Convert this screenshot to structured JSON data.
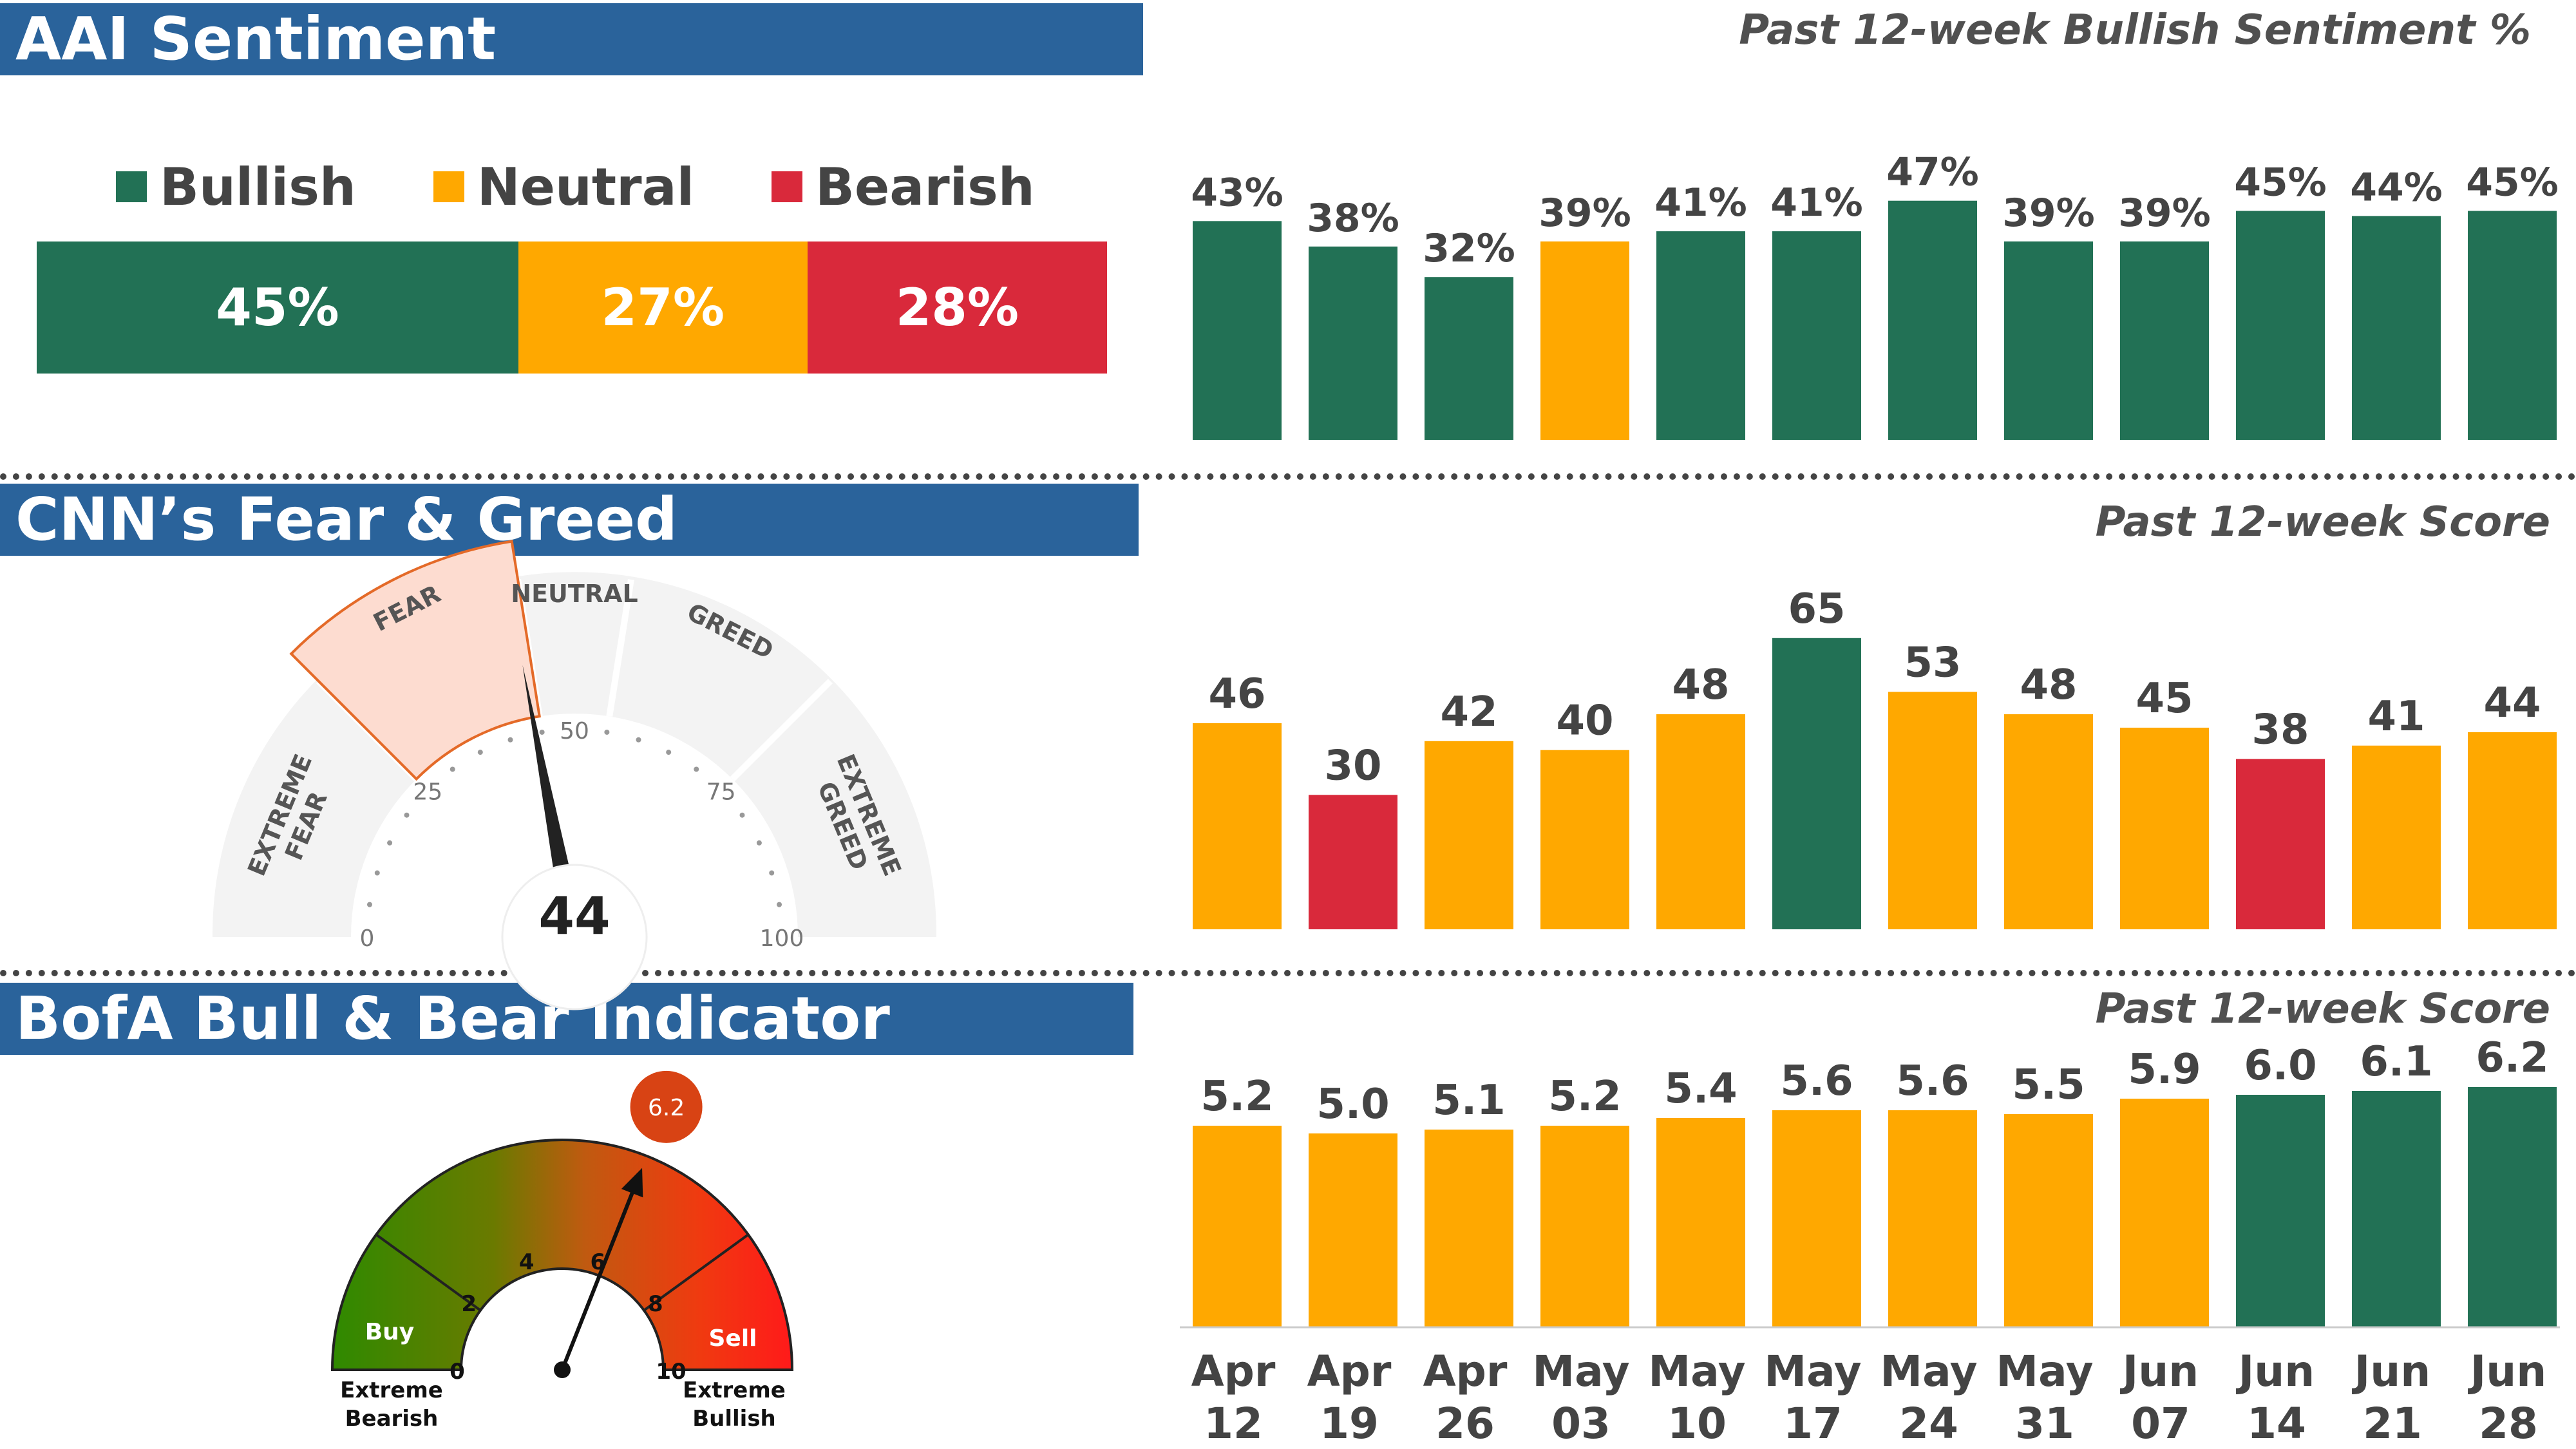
{
  "colors": {
    "green": "#227155",
    "amber": "#FFA800",
    "red": "#D9293B",
    "header_blue": "#2A639B"
  },
  "weeks": [
    "Apr 12",
    "Apr 19",
    "Apr 26",
    "May 03",
    "May 10",
    "May 17",
    "May 24",
    "May 31",
    "Jun 07",
    "Jun 14",
    "Jun 21",
    "Jun 28"
  ],
  "aai": {
    "header": "AAI Sentiment",
    "chart_title": "Past 12-week Bullish Sentiment %",
    "legend": [
      {
        "label": "Bullish",
        "color": "#227155"
      },
      {
        "label": "Neutral",
        "color": "#FFA800"
      },
      {
        "label": "Bearish",
        "color": "#D9293B"
      }
    ],
    "breakdown": [
      {
        "label": "45%",
        "value": 45,
        "color": "#227155"
      },
      {
        "label": "27%",
        "value": 27,
        "color": "#FFA800"
      },
      {
        "label": "28%",
        "value": 28,
        "color": "#D9293B"
      }
    ]
  },
  "cnn": {
    "header": "CNN’s Fear & Greed",
    "chart_title": "Past 12-week Score",
    "gauge": {
      "value": 44,
      "value_label": "44",
      "zones": [
        "EXTREME FEAR",
        "FEAR",
        "NEUTRAL",
        "GREED",
        "EXTREME GREED"
      ],
      "ticks": [
        "0",
        "25",
        "50",
        "75",
        "100"
      ]
    }
  },
  "bofa": {
    "header": "BofA Bull & Bear Indicator",
    "chart_title": "Past 12-week Score",
    "gauge": {
      "value": 6.2,
      "value_label": "6.2",
      "ticks": [
        "0",
        "2",
        "4",
        "6",
        "8",
        "10"
      ],
      "buy_label": "Buy",
      "sell_label": "Sell",
      "left_caption": [
        "Extreme",
        "Bearish"
      ],
      "right_caption": [
        "Extreme",
        "Bullish"
      ]
    }
  },
  "chart_data": [
    {
      "type": "bar",
      "title": "Past 12-week Bullish Sentiment %",
      "categories": [
        "Apr 12",
        "Apr 19",
        "Apr 26",
        "May 03",
        "May 10",
        "May 17",
        "May 24",
        "May 31",
        "Jun 07",
        "Jun 14",
        "Jun 21",
        "Jun 28"
      ],
      "values": [
        43,
        38,
        32,
        39,
        41,
        41,
        47,
        39,
        39,
        45,
        44,
        45
      ],
      "labels": [
        "43%",
        "38%",
        "32%",
        "39%",
        "41%",
        "41%",
        "47%",
        "39%",
        "39%",
        "45%",
        "44%",
        "45%"
      ],
      "colors": [
        "#227155",
        "#227155",
        "#227155",
        "#FFA800",
        "#227155",
        "#227155",
        "#227155",
        "#227155",
        "#227155",
        "#227155",
        "#227155",
        "#227155"
      ],
      "ylim": [
        0,
        50
      ]
    },
    {
      "type": "bar",
      "title": "Past 12-week Score",
      "categories": [
        "Apr 12",
        "Apr 19",
        "Apr 26",
        "May 03",
        "May 10",
        "May 17",
        "May 24",
        "May 31",
        "Jun 07",
        "Jun 14",
        "Jun 21",
        "Jun 28"
      ],
      "values": [
        46,
        30,
        42,
        40,
        48,
        65,
        53,
        48,
        45,
        38,
        41,
        44
      ],
      "labels": [
        "46",
        "30",
        "42",
        "40",
        "48",
        "65",
        "53",
        "48",
        "45",
        "38",
        "41",
        "44"
      ],
      "colors": [
        "#FFA800",
        "#D9293B",
        "#FFA800",
        "#FFA800",
        "#FFA800",
        "#227155",
        "#FFA800",
        "#FFA800",
        "#FFA800",
        "#D9293B",
        "#FFA800",
        "#FFA800"
      ],
      "ylim": [
        0,
        70
      ]
    },
    {
      "type": "bar",
      "title": "Past 12-week Score",
      "categories": [
        "Apr 12",
        "Apr 19",
        "Apr 26",
        "May 03",
        "May 10",
        "May 17",
        "May 24",
        "May 31",
        "Jun 07",
        "Jun 14",
        "Jun 21",
        "Jun 28"
      ],
      "values": [
        5.2,
        5.0,
        5.1,
        5.2,
        5.4,
        5.6,
        5.6,
        5.5,
        5.9,
        6.0,
        6.1,
        6.2
      ],
      "labels": [
        "5.2",
        "5.0",
        "5.1",
        "5.2",
        "5.4",
        "5.6",
        "5.6",
        "5.5",
        "5.9",
        "6.0",
        "6.1",
        "6.2"
      ],
      "colors": [
        "#FFA800",
        "#FFA800",
        "#FFA800",
        "#FFA800",
        "#FFA800",
        "#FFA800",
        "#FFA800",
        "#FFA800",
        "#FFA800",
        "#227155",
        "#227155",
        "#227155"
      ],
      "ylim": [
        0,
        7
      ]
    }
  ]
}
